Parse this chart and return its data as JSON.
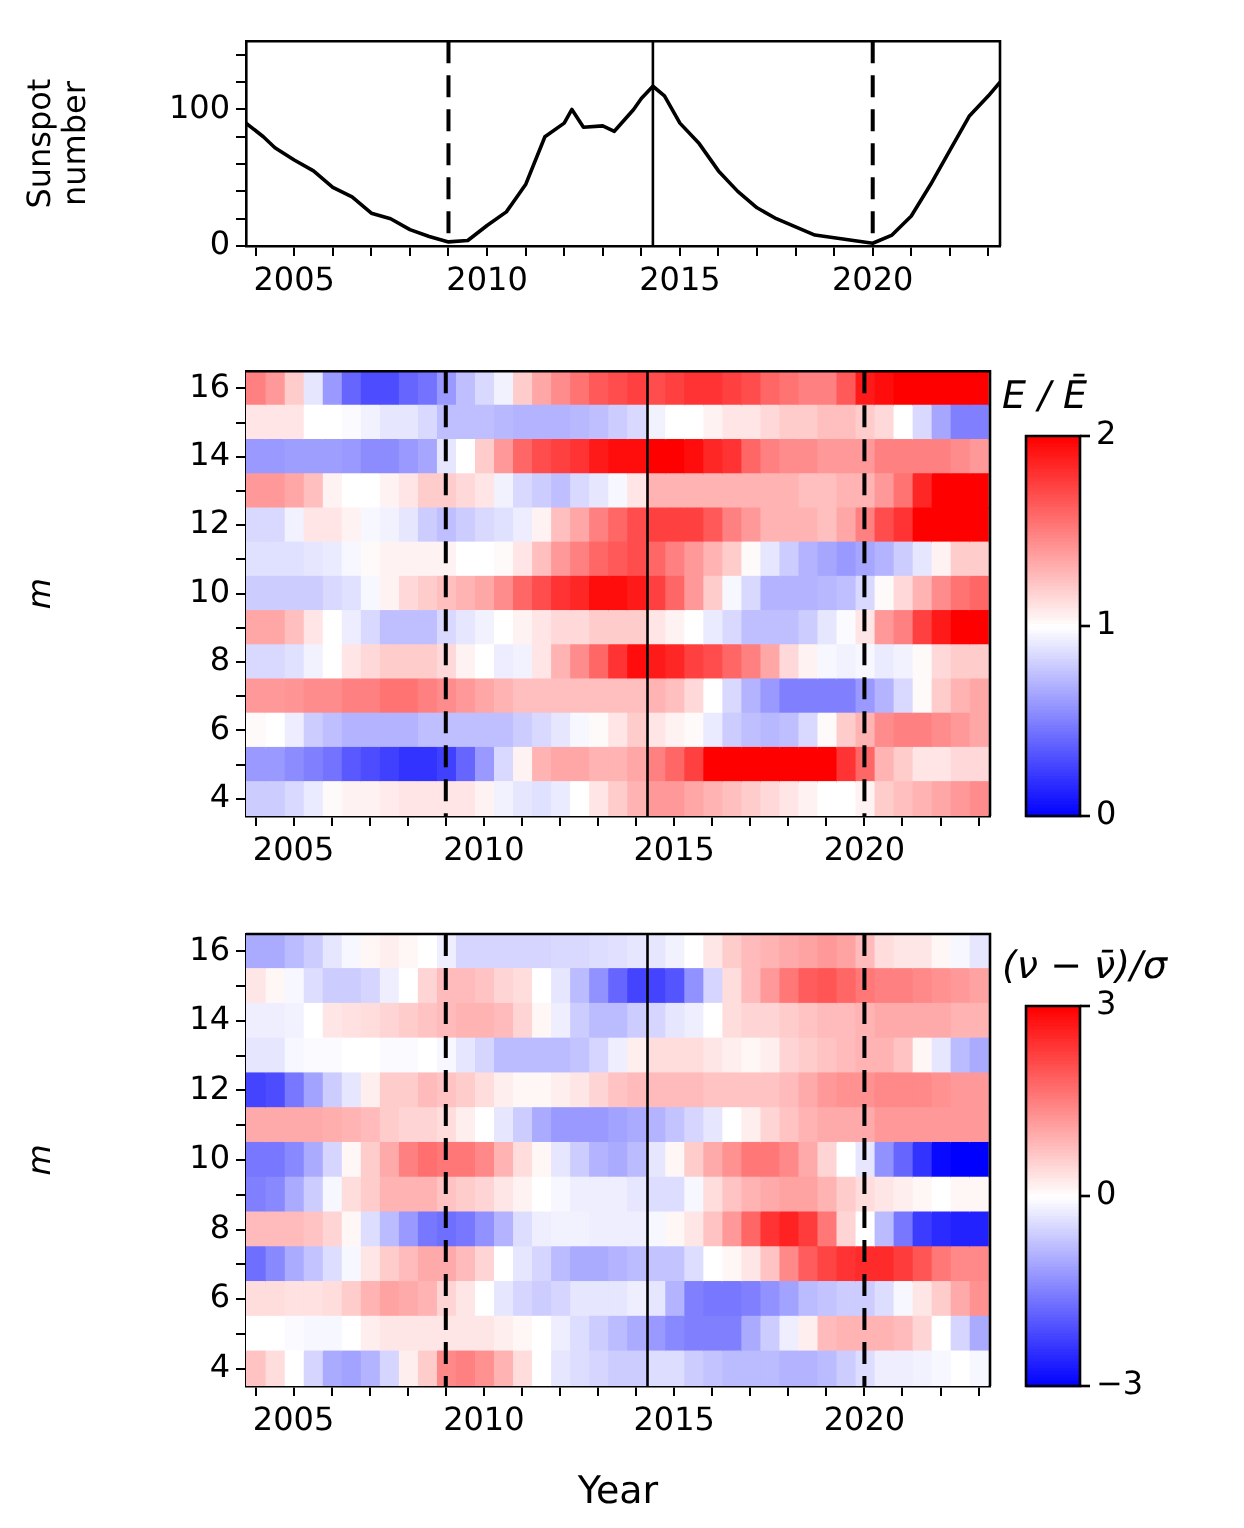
{
  "chart_data": [
    {
      "type": "line",
      "ylabel": "Sunspot\nnumber",
      "color": "#000000",
      "x": [
        2003.75,
        2004.2,
        2004.5,
        2005,
        2005.5,
        2006,
        2006.5,
        2007,
        2007.5,
        2008,
        2008.5,
        2009,
        2009.5,
        2010,
        2010.5,
        2011,
        2011.5,
        2012,
        2012.2,
        2012.5,
        2013,
        2013.3,
        2013.8,
        2014,
        2014.3,
        2014.6,
        2015,
        2015.5,
        2016,
        2016.5,
        2017,
        2017.5,
        2018,
        2018.5,
        2019,
        2019.5,
        2020,
        2020.5,
        2021,
        2021.5,
        2022,
        2022.5,
        2023,
        2023.3
      ],
      "values": [
        90,
        80,
        72,
        63,
        55,
        43,
        36,
        24,
        20,
        12,
        7,
        3,
        4,
        15,
        25,
        45,
        80,
        90,
        100,
        87,
        88,
        84,
        100,
        108,
        117,
        110,
        90,
        75,
        55,
        40,
        28,
        20,
        14,
        8,
        6,
        4,
        2,
        8,
        22,
        45,
        70,
        95,
        110,
        120
      ],
      "xlim": [
        2003.75,
        2023.3
      ],
      "ylim": [
        0,
        150
      ],
      "xticks": [
        {
          "value": 2004,
          "label": null
        },
        2005,
        {
          "value": 2006,
          "label": null
        },
        {
          "value": 2007,
          "label": null
        },
        {
          "value": 2008,
          "label": null
        },
        {
          "value": 2009,
          "label": null
        },
        2010,
        {
          "value": 2011,
          "label": null
        },
        {
          "value": 2012,
          "label": null
        },
        {
          "value": 2013,
          "label": null
        },
        {
          "value": 2014,
          "label": null
        },
        2015,
        {
          "value": 2016,
          "label": null
        },
        {
          "value": 2017,
          "label": null
        },
        {
          "value": 2018,
          "label": null
        },
        {
          "value": 2019,
          "label": null
        },
        2020,
        {
          "value": 2021,
          "label": null
        },
        {
          "value": 2022,
          "label": null
        },
        {
          "value": 2023,
          "label": null
        }
      ],
      "yticks": [
        0,
        {
          "value": 20,
          "label": null
        },
        {
          "value": 40,
          "label": null
        },
        {
          "value": 60,
          "label": null
        },
        {
          "value": 80,
          "label": null
        },
        100,
        {
          "value": 120,
          "label": null
        },
        {
          "value": 140,
          "label": null
        }
      ],
      "ref_lines": [
        {
          "axis": "x",
          "value": 2009,
          "line_style": "dashed"
        },
        {
          "axis": "x",
          "value": 2014.3,
          "line_style": "solid"
        },
        {
          "axis": "x",
          "value": 2020,
          "line_style": "dashed"
        }
      ]
    },
    {
      "type": "heatmap",
      "ylabel": "m",
      "clabel": "E / Ē",
      "x": [
        2004,
        2004.5,
        2005,
        2005.5,
        2006,
        2006.5,
        2007,
        2007.5,
        2008,
        2008.5,
        2009,
        2009.5,
        2010,
        2010.5,
        2011,
        2011.5,
        2012,
        2012.5,
        2013,
        2013.5,
        2014,
        2014.5,
        2015,
        2015.5,
        2016,
        2016.5,
        2017,
        2017.5,
        2018,
        2018.5,
        2019,
        2019.5,
        2020,
        2020.5,
        2021,
        2021.5,
        2022,
        2022.5,
        2023
      ],
      "y_categories": [
        "16",
        null,
        "14",
        null,
        "12",
        null,
        "10",
        null,
        "8",
        null,
        "6",
        null,
        "4"
      ],
      "cells": [
        [
          1.5,
          1.4,
          1.2,
          0.9,
          0.6,
          0.4,
          0.3,
          0.3,
          0.4,
          0.45,
          0.6,
          0.75,
          0.85,
          0.95,
          1.2,
          1.35,
          1.45,
          1.55,
          1.65,
          1.7,
          1.75,
          1.7,
          1.75,
          1.8,
          1.8,
          1.75,
          1.7,
          1.6,
          1.55,
          1.5,
          1.5,
          1.65,
          1.9,
          1.95,
          2,
          2,
          2,
          2,
          2
        ],
        [
          1.1,
          1.1,
          1.1,
          1.0,
          1.0,
          0.98,
          0.95,
          0.9,
          0.9,
          0.85,
          0.75,
          0.75,
          0.75,
          0.72,
          0.7,
          0.7,
          0.7,
          0.72,
          0.75,
          0.8,
          0.85,
          0.95,
          1.0,
          1.0,
          1.05,
          1.1,
          1.1,
          1.15,
          1.2,
          1.2,
          1.25,
          1.25,
          1.2,
          1.15,
          1.0,
          0.85,
          0.65,
          0.5,
          0.5
        ],
        [
          0.6,
          0.6,
          0.62,
          0.62,
          0.62,
          0.6,
          0.55,
          0.55,
          0.6,
          0.65,
          0.9,
          1.0,
          1.2,
          1.4,
          1.6,
          1.7,
          1.75,
          1.8,
          1.9,
          1.95,
          1.95,
          2,
          2,
          1.95,
          1.85,
          1.8,
          1.6,
          1.5,
          1.45,
          1.45,
          1.4,
          1.4,
          1.4,
          1.5,
          1.5,
          1.5,
          1.5,
          1.45,
          1.4
        ],
        [
          1.4,
          1.4,
          1.35,
          1.25,
          1.05,
          1.0,
          1.0,
          1.05,
          1.1,
          1.2,
          1.2,
          1.15,
          1.1,
          0.95,
          0.85,
          0.8,
          0.75,
          0.85,
          0.9,
          0.97,
          1.1,
          1.3,
          1.3,
          1.3,
          1.3,
          1.3,
          1.3,
          1.3,
          1.3,
          1.25,
          1.25,
          1.3,
          1.3,
          1.4,
          1.55,
          1.85,
          2,
          2,
          2
        ],
        [
          0.85,
          0.85,
          0.95,
          1.1,
          1.1,
          1.05,
          0.97,
          0.95,
          0.9,
          0.8,
          0.75,
          0.8,
          0.85,
          0.88,
          0.93,
          1.05,
          1.25,
          1.35,
          1.5,
          1.6,
          1.7,
          1.75,
          1.75,
          1.75,
          1.65,
          1.5,
          1.4,
          1.3,
          1.3,
          1.3,
          1.25,
          1.35,
          1.5,
          1.7,
          1.8,
          2,
          2,
          2,
          2
        ],
        [
          0.88,
          0.88,
          0.88,
          0.9,
          0.92,
          0.97,
          1.02,
          1.05,
          1.05,
          1.05,
          1.05,
          1.0,
          1.0,
          1.02,
          1.1,
          1.25,
          1.4,
          1.5,
          1.6,
          1.65,
          1.7,
          1.6,
          1.5,
          1.4,
          1.3,
          1.2,
          1.02,
          0.9,
          0.8,
          0.7,
          0.65,
          0.6,
          0.65,
          0.7,
          0.8,
          0.9,
          1.05,
          1.2,
          1.2
        ],
        [
          0.8,
          0.8,
          0.8,
          0.8,
          0.85,
          0.88,
          0.97,
          1.05,
          1.15,
          1.2,
          1.25,
          1.3,
          1.35,
          1.45,
          1.6,
          1.7,
          1.8,
          1.85,
          1.95,
          1.95,
          1.9,
          1.75,
          1.6,
          1.4,
          1.2,
          0.97,
          0.85,
          0.7,
          0.7,
          0.7,
          0.72,
          0.75,
          0.85,
          1.02,
          1.15,
          1.3,
          1.45,
          1.55,
          1.6
        ],
        [
          1.35,
          1.35,
          1.25,
          1.1,
          1.0,
          0.93,
          0.85,
          0.75,
          0.75,
          0.75,
          0.85,
          0.9,
          0.95,
          1.0,
          1.05,
          1.1,
          1.15,
          1.15,
          1.2,
          1.2,
          1.2,
          1.1,
          1.05,
          1.0,
          0.92,
          0.85,
          0.75,
          0.75,
          0.75,
          0.8,
          0.9,
          0.98,
          1.1,
          1.4,
          1.5,
          1.75,
          1.9,
          2,
          2
        ],
        [
          0.85,
          0.85,
          0.88,
          0.95,
          1.0,
          1.1,
          1.15,
          1.2,
          1.2,
          1.2,
          1.15,
          1.05,
          1.0,
          0.93,
          0.95,
          1.1,
          1.3,
          1.45,
          1.6,
          1.8,
          1.95,
          1.9,
          1.85,
          1.75,
          1.7,
          1.6,
          1.5,
          1.35,
          1.15,
          1.05,
          0.97,
          0.95,
          0.97,
          0.92,
          0.95,
          1.02,
          1.15,
          1.2,
          1.2
        ],
        [
          1.4,
          1.4,
          1.42,
          1.45,
          1.45,
          1.5,
          1.5,
          1.55,
          1.55,
          1.5,
          1.45,
          1.4,
          1.35,
          1.3,
          1.25,
          1.25,
          1.25,
          1.25,
          1.25,
          1.25,
          1.25,
          1.3,
          1.25,
          1.15,
          1.0,
          0.85,
          0.7,
          0.6,
          0.5,
          0.5,
          0.5,
          0.5,
          0.6,
          0.7,
          0.85,
          1.02,
          1.2,
          1.3,
          1.35
        ],
        [
          1.02,
          1.0,
          0.93,
          0.8,
          0.75,
          0.7,
          0.7,
          0.7,
          0.7,
          0.75,
          0.75,
          0.75,
          0.75,
          0.75,
          0.8,
          0.85,
          0.9,
          0.97,
          1.02,
          1.1,
          1.2,
          1.1,
          1.05,
          1.02,
          0.92,
          0.8,
          0.75,
          0.72,
          0.75,
          0.85,
          1.02,
          1.2,
          1.3,
          1.45,
          1.5,
          1.5,
          1.45,
          1.4,
          1.35
        ],
        [
          0.6,
          0.6,
          0.55,
          0.5,
          0.45,
          0.35,
          0.3,
          0.25,
          0.2,
          0.2,
          0.25,
          0.4,
          0.6,
          0.85,
          1.05,
          1.3,
          1.35,
          1.35,
          1.3,
          1.3,
          1.35,
          1.5,
          1.6,
          1.75,
          2,
          2,
          2,
          2,
          2,
          2,
          2,
          1.8,
          1.6,
          1.3,
          1.2,
          1.1,
          1.1,
          1.15,
          1.15
        ],
        [
          0.8,
          0.8,
          0.85,
          0.92,
          1.02,
          1.05,
          1.05,
          1.08,
          1.1,
          1.1,
          1.1,
          1.1,
          1.05,
          0.95,
          0.9,
          0.88,
          0.92,
          1.0,
          1.1,
          1.2,
          1.3,
          1.4,
          1.4,
          1.35,
          1.3,
          1.25,
          1.2,
          1.15,
          1.1,
          1.05,
          1.0,
          1.0,
          1.05,
          1.2,
          1.25,
          1.3,
          1.35,
          1.4,
          1.45
        ]
      ],
      "clim": [
        0,
        2
      ],
      "cticks": [
        0,
        1,
        2
      ],
      "xlim": [
        2003.75,
        2023.3
      ],
      "xticks": [
        {
          "value": 2004,
          "label": null
        },
        2005,
        {
          "value": 2006,
          "label": null
        },
        {
          "value": 2007,
          "label": null
        },
        {
          "value": 2008,
          "label": null
        },
        {
          "value": 2009,
          "label": null
        },
        2010,
        {
          "value": 2011,
          "label": null
        },
        {
          "value": 2012,
          "label": null
        },
        {
          "value": 2013,
          "label": null
        },
        {
          "value": 2014,
          "label": null
        },
        2015,
        {
          "value": 2016,
          "label": null
        },
        {
          "value": 2017,
          "label": null
        },
        {
          "value": 2018,
          "label": null
        },
        {
          "value": 2019,
          "label": null
        },
        2020,
        {
          "value": 2021,
          "label": null
        },
        {
          "value": 2022,
          "label": null
        },
        {
          "value": 2023,
          "label": null
        }
      ],
      "ref_lines": [
        {
          "axis": "x",
          "value": 2009,
          "line_style": "dashed"
        },
        {
          "axis": "x",
          "value": 2014.3,
          "line_style": "solid"
        },
        {
          "axis": "x",
          "value": 2020,
          "line_style": "dashed"
        }
      ]
    },
    {
      "type": "heatmap",
      "ylabel": "m",
      "xlabel": "Year",
      "clabel": "(ν − ν̄)/σ",
      "x": [
        2004,
        2004.5,
        2005,
        2005.5,
        2006,
        2006.5,
        2007,
        2007.5,
        2008,
        2008.5,
        2009,
        2009.5,
        2010,
        2010.5,
        2011,
        2011.5,
        2012,
        2012.5,
        2013,
        2013.5,
        2014,
        2014.5,
        2015,
        2015.5,
        2016,
        2016.5,
        2017,
        2017.5,
        2018,
        2018.5,
        2019,
        2019.5,
        2020,
        2020.5,
        2021,
        2021.5,
        2022,
        2022.5,
        2023
      ],
      "y_categories": [
        "16",
        null,
        "14",
        null,
        "12",
        null,
        "10",
        null,
        "8",
        null,
        "6",
        null,
        "4"
      ],
      "cells": [
        [
          -1.0,
          -1.0,
          -0.8,
          -0.6,
          -0.3,
          -0.1,
          0.1,
          0.2,
          0.1,
          0,
          -0.2,
          -0.5,
          -0.5,
          -0.5,
          -0.5,
          -0.5,
          -0.45,
          -0.45,
          -0.4,
          -0.35,
          -0.3,
          -0.3,
          -0.15,
          0,
          0.3,
          0.6,
          0.8,
          0.9,
          1.0,
          1.1,
          1.2,
          1.1,
          0.8,
          0.4,
          0.3,
          0.3,
          0.1,
          -0.1,
          -0.3
        ],
        [
          0.3,
          0.1,
          -0.1,
          -0.4,
          -0.6,
          -0.6,
          -0.5,
          -0.2,
          0,
          0.5,
          0.8,
          0.8,
          0.7,
          0.5,
          0.4,
          0,
          -0.3,
          -0.8,
          -1.3,
          -1.8,
          -2.2,
          -2.2,
          -2.0,
          -1.3,
          -0.5,
          0.4,
          0.8,
          1.2,
          1.6,
          1.9,
          2.0,
          1.8,
          1.6,
          1.5,
          1.5,
          1.4,
          1.3,
          1.2,
          1.1
        ],
        [
          -0.2,
          -0.2,
          -0.15,
          0,
          0.3,
          0.35,
          0.4,
          0.5,
          0.6,
          0.7,
          0.8,
          0.9,
          0.9,
          0.8,
          0.5,
          0.1,
          -0.2,
          -0.6,
          -0.8,
          -0.8,
          -0.6,
          -0.5,
          -0.3,
          -0.2,
          0,
          0.4,
          0.5,
          0.5,
          0.6,
          0.7,
          0.8,
          0.8,
          0.9,
          1.0,
          1.0,
          1.0,
          1.0,
          0.9,
          0.9
        ],
        [
          -0.3,
          -0.3,
          -0.1,
          -0.05,
          -0.05,
          0,
          0,
          -0.05,
          -0.05,
          0,
          -0.1,
          -0.3,
          -0.5,
          -0.8,
          -0.8,
          -0.8,
          -0.8,
          -0.7,
          -0.5,
          -0.2,
          0.2,
          0.4,
          0.4,
          0.4,
          0.3,
          0.2,
          0.1,
          0.2,
          0.5,
          0.6,
          0.7,
          0.8,
          0.9,
          0.9,
          0.7,
          0.1,
          -0.3,
          -0.8,
          -1.0
        ],
        [
          -2.2,
          -2.1,
          -1.6,
          -1.1,
          -0.6,
          -0.3,
          0.2,
          0.6,
          0.6,
          0.8,
          0.7,
          0.6,
          0.4,
          0.2,
          0.1,
          0.1,
          0.2,
          0.3,
          0.5,
          0.7,
          0.8,
          0.8,
          0.8,
          0.8,
          0.7,
          0.7,
          0.7,
          0.7,
          0.8,
          1.0,
          1.2,
          1.3,
          1.3,
          1.4,
          1.4,
          1.4,
          1.3,
          1.2,
          1.2
        ],
        [
          1.0,
          1.0,
          1.0,
          1.0,
          0.95,
          0.9,
          0.8,
          0.6,
          0.5,
          0.5,
          0.4,
          0.2,
          0,
          -0.3,
          -0.6,
          -1.0,
          -1.2,
          -1.2,
          -1.2,
          -1.1,
          -1.0,
          -0.9,
          -0.7,
          -0.5,
          -0.3,
          0,
          0.2,
          0.5,
          0.7,
          0.9,
          1.0,
          1.0,
          1.0,
          1.2,
          1.2,
          1.2,
          1.2,
          1.2,
          1.2
        ],
        [
          -1.6,
          -1.6,
          -1.4,
          -1.0,
          -0.5,
          0.1,
          0.6,
          1.0,
          1.5,
          1.7,
          1.6,
          1.6,
          1.4,
          0.9,
          0.4,
          0.1,
          -0.3,
          -0.6,
          -0.9,
          -1.0,
          -0.8,
          -0.3,
          0.1,
          0.6,
          1.0,
          1.3,
          1.6,
          1.6,
          1.4,
          1.0,
          0.5,
          0,
          -0.3,
          -1.3,
          -1.8,
          -2.4,
          -2.9,
          -3,
          -3
        ],
        [
          -1.5,
          -1.4,
          -1.0,
          -0.6,
          -0.1,
          0.4,
          0.6,
          0.9,
          0.9,
          0.9,
          0.7,
          0.6,
          0.5,
          0.3,
          0.15,
          0,
          -0.1,
          -0.2,
          -0.2,
          -0.2,
          -0.3,
          -0.4,
          -0.4,
          -0.1,
          0.4,
          0.7,
          0.9,
          1.0,
          1.1,
          1.1,
          0.9,
          0.6,
          0.4,
          0.3,
          0.2,
          0.1,
          0,
          0.1,
          0.1
        ],
        [
          0.8,
          0.8,
          0.8,
          0.7,
          0.5,
          0.1,
          -0.4,
          -0.8,
          -1.2,
          -1.6,
          -1.7,
          -1.6,
          -1.3,
          -0.9,
          -0.4,
          -0.2,
          -0.15,
          -0.15,
          -0.2,
          -0.2,
          -0.2,
          -0.1,
          0.1,
          0.3,
          0.7,
          1.2,
          1.8,
          2.4,
          2.6,
          2.3,
          1.6,
          0.5,
          0,
          -0.8,
          -1.6,
          -2.3,
          -2.5,
          -2.6,
          -2.6
        ],
        [
          -1.7,
          -1.4,
          -1.0,
          -0.7,
          -0.4,
          -0.1,
          0.3,
          0.6,
          0.8,
          1.0,
          1.0,
          0.8,
          0.5,
          0,
          -0.3,
          -0.5,
          -0.8,
          -1.0,
          -1.0,
          -0.9,
          -0.8,
          -0.7,
          -0.7,
          -0.4,
          0,
          0.1,
          0.3,
          0.7,
          1.4,
          1.9,
          2.2,
          2.4,
          2.5,
          2.5,
          2.3,
          2.0,
          1.6,
          1.4,
          1.4
        ],
        [
          0.4,
          0.4,
          0.35,
          0.35,
          0.4,
          0.6,
          0.9,
          1.1,
          1.0,
          0.9,
          0.5,
          0.3,
          0,
          -0.3,
          -0.5,
          -0.6,
          -0.5,
          -0.3,
          -0.3,
          -0.3,
          -0.2,
          -0.3,
          -0.9,
          -1.5,
          -1.6,
          -1.6,
          -1.5,
          -1.3,
          -1.1,
          -0.8,
          -0.7,
          -0.6,
          -0.6,
          -0.4,
          -0.1,
          0.3,
          0.6,
          1.0,
          1.3
        ],
        [
          0,
          0,
          -0.05,
          -0.1,
          -0.1,
          0,
          0.2,
          0.3,
          0.3,
          0.3,
          0.3,
          0.3,
          0.3,
          0.2,
          0.1,
          0,
          -0.2,
          -0.4,
          -0.6,
          -0.8,
          -1.0,
          -1.2,
          -1.4,
          -1.5,
          -1.5,
          -1.5,
          -1.0,
          -0.6,
          -0.2,
          0.2,
          0.8,
          0.9,
          0.9,
          0.9,
          0.8,
          0.5,
          0,
          -0.5,
          -1.0
        ],
        [
          0.7,
          0.4,
          0,
          -0.5,
          -1.0,
          -1.1,
          -0.9,
          -0.5,
          0.2,
          0.6,
          1.4,
          1.5,
          1.3,
          0.9,
          0.4,
          0,
          -0.3,
          -0.4,
          -0.5,
          -0.6,
          -0.6,
          -0.4,
          -0.4,
          -0.6,
          -0.7,
          -0.8,
          -0.8,
          -0.8,
          -0.9,
          -0.9,
          -0.8,
          -0.6,
          -0.4,
          -0.2,
          -0.2,
          -0.15,
          -0.1,
          0,
          -0.1
        ]
      ],
      "clim": [
        -3,
        3
      ],
      "cticks": [
        {
          "value": -3,
          "label": "−3"
        },
        0,
        3
      ],
      "xlim": [
        2003.75,
        2023.3
      ],
      "xticks": [
        {
          "value": 2004,
          "label": null
        },
        2005,
        {
          "value": 2006,
          "label": null
        },
        {
          "value": 2007,
          "label": null
        },
        {
          "value": 2008,
          "label": null
        },
        {
          "value": 2009,
          "label": null
        },
        2010,
        {
          "value": 2011,
          "label": null
        },
        {
          "value": 2012,
          "label": null
        },
        {
          "value": 2013,
          "label": null
        },
        {
          "value": 2014,
          "label": null
        },
        2015,
        {
          "value": 2016,
          "label": null
        },
        {
          "value": 2017,
          "label": null
        },
        {
          "value": 2018,
          "label": null
        },
        {
          "value": 2019,
          "label": null
        },
        2020,
        {
          "value": 2021,
          "label": null
        },
        {
          "value": 2022,
          "label": null
        },
        {
          "value": 2023,
          "label": null
        }
      ],
      "ref_lines": [
        {
          "axis": "x",
          "value": 2009,
          "line_style": "dashed"
        },
        {
          "axis": "x",
          "value": 2014.3,
          "line_style": "solid"
        },
        {
          "axis": "x",
          "value": 2020,
          "line_style": "dashed"
        }
      ]
    }
  ]
}
